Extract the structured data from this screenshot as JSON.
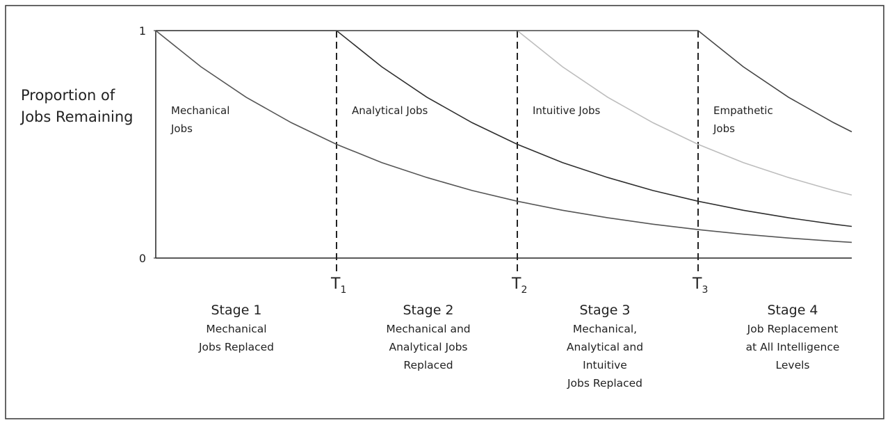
{
  "chart_data": {
    "type": "line",
    "y_label": "Proportion of Jobs Remaining",
    "x": [
      0,
      0.25,
      0.5,
      0.75,
      1,
      1.25,
      1.5,
      1.75,
      2,
      2.25,
      2.5,
      2.75,
      3,
      3.25,
      3.5,
      3.75,
      3.85
    ],
    "series": [
      {
        "name": "Mechanical Jobs",
        "color": "#555555",
        "values": [
          1,
          0.841,
          0.707,
          0.595,
          0.5,
          0.42,
          0.354,
          0.297,
          0.25,
          0.21,
          0.177,
          0.149,
          0.125,
          0.105,
          0.088,
          0.074,
          0.069
        ]
      },
      {
        "name": "Analytical Jobs",
        "color": "#2e2e2e",
        "values": [
          1,
          1,
          1,
          1,
          1,
          0.841,
          0.707,
          0.595,
          0.5,
          0.42,
          0.354,
          0.297,
          0.25,
          0.21,
          0.177,
          0.149,
          0.139
        ]
      },
      {
        "name": "Intuitive Jobs",
        "color": "#bdbdbd",
        "values": [
          1,
          1,
          1,
          1,
          1,
          1,
          1,
          1,
          1,
          0.841,
          0.707,
          0.595,
          0.5,
          0.42,
          0.354,
          0.297,
          0.277
        ]
      },
      {
        "name": "Empathetic Jobs",
        "color": "#444444",
        "values": [
          1,
          1,
          1,
          1,
          1,
          1,
          1,
          1,
          1,
          1,
          1,
          1,
          1,
          0.841,
          0.707,
          0.595,
          0.555
        ]
      }
    ],
    "xlim": [
      0,
      3.85
    ],
    "xticks": [
      {
        "value": 1,
        "label": "T1"
      },
      {
        "value": 2,
        "label": "T2"
      },
      {
        "value": 3,
        "label": "T3"
      }
    ],
    "ylim": [
      0,
      1
    ],
    "yticks": [
      0,
      1
    ],
    "x_dashed_lines": true,
    "stages": [
      {
        "title": "Stage 1",
        "description": "Mechanical\nJobs Replaced"
      },
      {
        "title": "Stage 2",
        "description": "Mechanical and\nAnalytical Jobs\nReplaced"
      },
      {
        "title": "Stage 3",
        "description": "Mechanical,\nAnalytical and\nIntuitive\nJobs Replaced"
      },
      {
        "title": "Stage 4",
        "description": "Job Replacement\nat All Intelligence\nLevels"
      }
    ]
  }
}
